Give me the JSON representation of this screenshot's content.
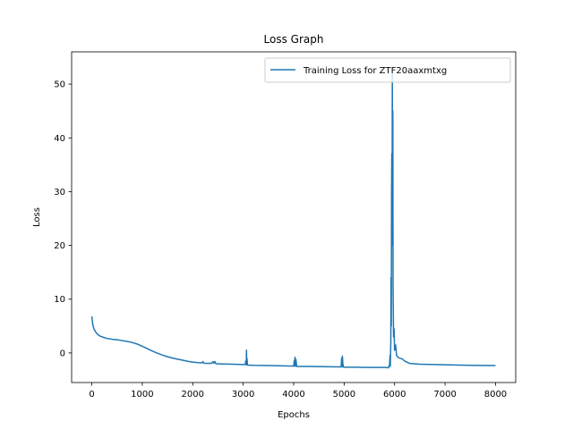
{
  "chart_data": {
    "type": "line",
    "title": "Loss Graph",
    "xlabel": "Epochs",
    "ylabel": "Loss",
    "xlim": [
      -400,
      8400
    ],
    "ylim": [
      -5.5,
      56
    ],
    "xticks": [
      0,
      1000,
      2000,
      3000,
      4000,
      5000,
      6000,
      7000,
      8000
    ],
    "yticks": [
      0,
      10,
      20,
      30,
      40,
      50
    ],
    "grid": false,
    "legend_position": "top-right",
    "series": [
      {
        "name": "Training Loss for ZTF20aaxmtxg",
        "color": "#1f77b4",
        "points": [
          [
            0,
            6.8
          ],
          [
            20,
            5.2
          ],
          [
            50,
            4.3
          ],
          [
            100,
            3.6
          ],
          [
            150,
            3.2
          ],
          [
            200,
            3.0
          ],
          [
            300,
            2.7
          ],
          [
            400,
            2.55
          ],
          [
            500,
            2.45
          ],
          [
            600,
            2.3
          ],
          [
            700,
            2.15
          ],
          [
            800,
            1.95
          ],
          [
            900,
            1.65
          ],
          [
            1000,
            1.25
          ],
          [
            1100,
            0.8
          ],
          [
            1200,
            0.35
          ],
          [
            1300,
            -0.05
          ],
          [
            1400,
            -0.4
          ],
          [
            1500,
            -0.7
          ],
          [
            1600,
            -0.95
          ],
          [
            1700,
            -1.15
          ],
          [
            1800,
            -1.35
          ],
          [
            1900,
            -1.55
          ],
          [
            2000,
            -1.7
          ],
          [
            2100,
            -1.8
          ],
          [
            2180,
            -1.85
          ],
          [
            2200,
            -1.6
          ],
          [
            2220,
            -1.9
          ],
          [
            2300,
            -1.95
          ],
          [
            2380,
            -1.9
          ],
          [
            2400,
            -1.6
          ],
          [
            2420,
            -1.9
          ],
          [
            2440,
            -1.6
          ],
          [
            2460,
            -2.0
          ],
          [
            2600,
            -2.05
          ],
          [
            2800,
            -2.1
          ],
          [
            3000,
            -2.15
          ],
          [
            3040,
            -2.15
          ],
          [
            3050,
            -1.5
          ],
          [
            3060,
            -2.2
          ],
          [
            3065,
            0.5
          ],
          [
            3070,
            -2.2
          ],
          [
            3075,
            -1.0
          ],
          [
            3085,
            -2.25
          ],
          [
            3200,
            -2.3
          ],
          [
            3500,
            -2.35
          ],
          [
            3800,
            -2.4
          ],
          [
            4000,
            -2.45
          ],
          [
            4010,
            -1.5
          ],
          [
            4020,
            -2.45
          ],
          [
            4025,
            -0.8
          ],
          [
            4035,
            -2.45
          ],
          [
            4045,
            -1.2
          ],
          [
            4060,
            -2.5
          ],
          [
            4300,
            -2.5
          ],
          [
            4600,
            -2.55
          ],
          [
            4900,
            -2.6
          ],
          [
            4940,
            -2.6
          ],
          [
            4950,
            -1.0
          ],
          [
            4960,
            -2.6
          ],
          [
            4965,
            -0.6
          ],
          [
            4975,
            -2.0
          ],
          [
            4990,
            -2.65
          ],
          [
            5200,
            -2.65
          ],
          [
            5500,
            -2.7
          ],
          [
            5800,
            -2.7
          ],
          [
            5880,
            -2.75
          ],
          [
            5900,
            -2.2
          ],
          [
            5910,
            -0.5
          ],
          [
            5915,
            -2.5
          ],
          [
            5925,
            2.0
          ],
          [
            5930,
            14.0
          ],
          [
            5935,
            5.0
          ],
          [
            5940,
            30.0
          ],
          [
            5945,
            37.0
          ],
          [
            5950,
            20.0
          ],
          [
            5955,
            52.0
          ],
          [
            5960,
            30.0
          ],
          [
            5965,
            45.0
          ],
          [
            5970,
            12.0
          ],
          [
            5980,
            3.0
          ],
          [
            5990,
            4.5
          ],
          [
            6000,
            0.5
          ],
          [
            6020,
            1.5
          ],
          [
            6040,
            -0.5
          ],
          [
            6080,
            -0.9
          ],
          [
            6150,
            -1.1
          ],
          [
            6200,
            -1.5
          ],
          [
            6300,
            -1.95
          ],
          [
            6500,
            -2.1
          ],
          [
            7000,
            -2.2
          ],
          [
            7500,
            -2.3
          ],
          [
            8000,
            -2.35
          ]
        ]
      }
    ]
  }
}
